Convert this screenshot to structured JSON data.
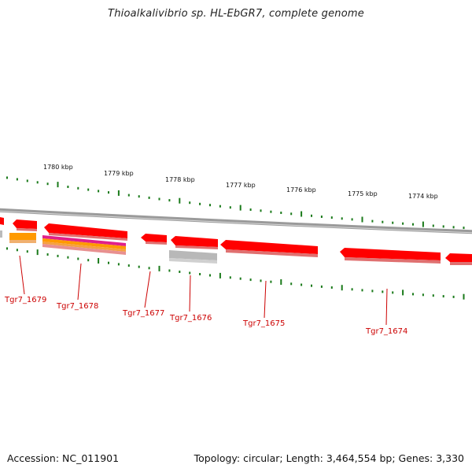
{
  "title": "Thioalkalivibrio sp. HL-EbGR7, complete genome",
  "footer": {
    "accession": "Accession: NC_011901",
    "summary": "Topology: circular; Length: 3,464,554 bp; Genes: 3,330"
  },
  "scale": {
    "labels": [
      "1780 kbp",
      "1779 kbp",
      "1778 kbp",
      "1777 kbp",
      "1776 kbp",
      "1775 kbp",
      "1774 kbp"
    ]
  },
  "genes": [
    {
      "label": "Tgr7_1679"
    },
    {
      "label": "Tgr7_1678"
    },
    {
      "label": "Tgr7_1677"
    },
    {
      "label": "Tgr7_1676"
    },
    {
      "label": "Tgr7_1675"
    },
    {
      "label": "Tgr7_1674"
    }
  ],
  "colors": {
    "gene": "#ff0000",
    "gene_shadow": "#e07070",
    "backbone": "#909090",
    "ticks": "#1a7a1a",
    "label": "#cc0000",
    "orange": "#ff9900",
    "magenta": "#e0208a",
    "gray_feature": "#b8b8b8"
  }
}
